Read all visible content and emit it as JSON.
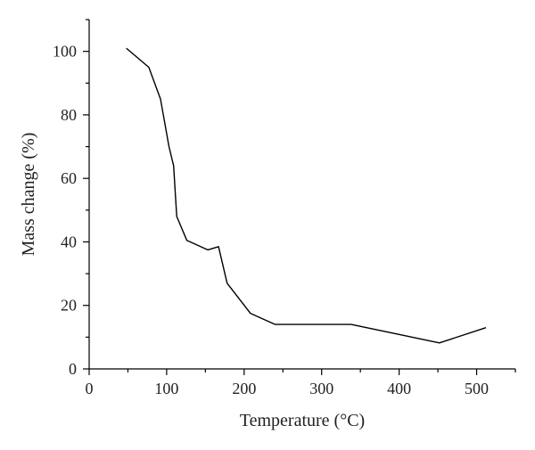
{
  "chart_data": {
    "type": "line",
    "title": "",
    "xlabel": "Temperature (°C)",
    "ylabel": "Mass change (%)",
    "xlim": [
      0,
      550
    ],
    "ylim": [
      0,
      110
    ],
    "x_ticks": [
      0,
      100,
      200,
      300,
      400,
      500
    ],
    "y_ticks": [
      0,
      20,
      40,
      60,
      80,
      100
    ],
    "x_minor_ticks": [
      50,
      150,
      250,
      350,
      450,
      550
    ],
    "y_minor_ticks": [
      10,
      30,
      50,
      70,
      90,
      110
    ],
    "grid": false,
    "legend": "none",
    "series": [
      {
        "color": "#000000",
        "x": [
          48,
          77,
          92,
          103,
          109,
          113,
          126,
          153,
          167,
          178,
          208,
          240,
          290,
          338,
          452,
          512
        ],
        "y": [
          101,
          95,
          85,
          70,
          64,
          48,
          40.5,
          37.5,
          38.5,
          27,
          17.5,
          14,
          14,
          14,
          8.2,
          13
        ]
      }
    ]
  }
}
